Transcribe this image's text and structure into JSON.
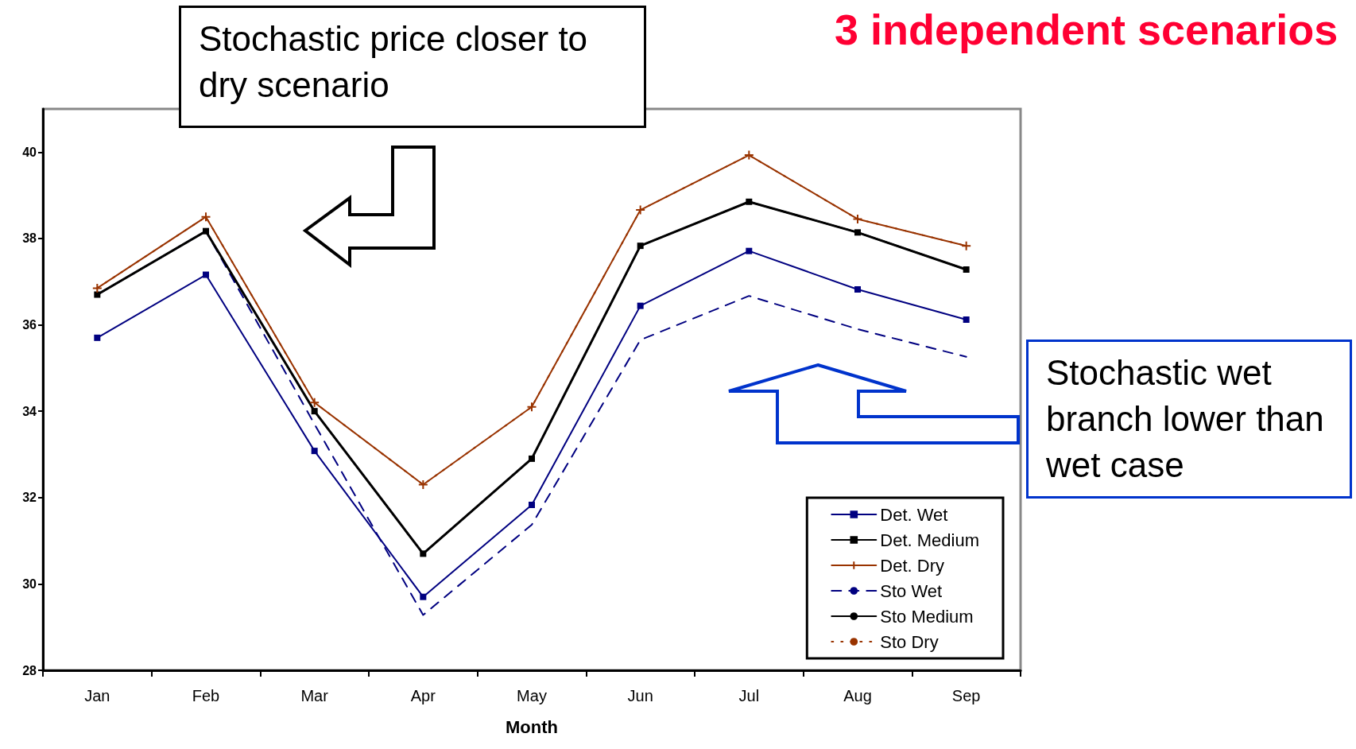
{
  "chart_data": {
    "type": "line",
    "title": "3 independent scenarios",
    "xlabel": "Month",
    "categories": [
      "Jan",
      "Feb",
      "Mar",
      "Apr",
      "May",
      "Jun",
      "Jul",
      "Aug",
      "Sep"
    ],
    "series": [
      {
        "name": "Det. Wet",
        "color": "#000080",
        "marker": "square",
        "line_style": "solid",
        "values": [
          35.7,
          37.16,
          33.08,
          29.7,
          31.83,
          36.44,
          37.71,
          36.82,
          36.12
        ]
      },
      {
        "name": "Det. Medium",
        "color": "#000000",
        "marker": "square",
        "line_style": "solid",
        "values": [
          36.7,
          38.17,
          34.0,
          30.7,
          32.9,
          37.83,
          38.85,
          38.14,
          37.28
        ]
      },
      {
        "name": "Det. Dry",
        "color": "#993300",
        "marker": "cross",
        "line_style": "solid",
        "values": [
          36.85,
          38.5,
          34.2,
          32.3,
          34.1,
          38.66,
          39.93,
          38.45,
          37.83
        ]
      },
      {
        "name": "Sto Wet",
        "color": "#000080",
        "marker": "none",
        "line_style": "dashed",
        "values": [
          36.7,
          38.17,
          33.7,
          29.28,
          31.37,
          35.65,
          36.67,
          35.9,
          35.26
        ]
      },
      {
        "name": "Sto Medium",
        "color": "#000000",
        "marker": "none",
        "line_style": "solid",
        "values": [
          36.7,
          38.17,
          34.0,
          30.7,
          32.9,
          37.83,
          38.85,
          38.14,
          37.28
        ]
      },
      {
        "name": "Sto Dry",
        "color": "#993300",
        "marker": "none",
        "line_style": "dotted",
        "values": [
          36.85,
          38.5,
          34.2,
          32.3,
          34.1,
          38.66,
          39.93,
          38.45,
          37.83
        ]
      }
    ],
    "ylim": [
      28,
      41
    ],
    "yticks": [
      28,
      30,
      32,
      34,
      36,
      38,
      40
    ],
    "grid": false,
    "legend": "bottom right",
    "annotations": [
      "Stochastic price closer to dry scenario",
      "Stochastic wet branch lower than wet case"
    ]
  }
}
